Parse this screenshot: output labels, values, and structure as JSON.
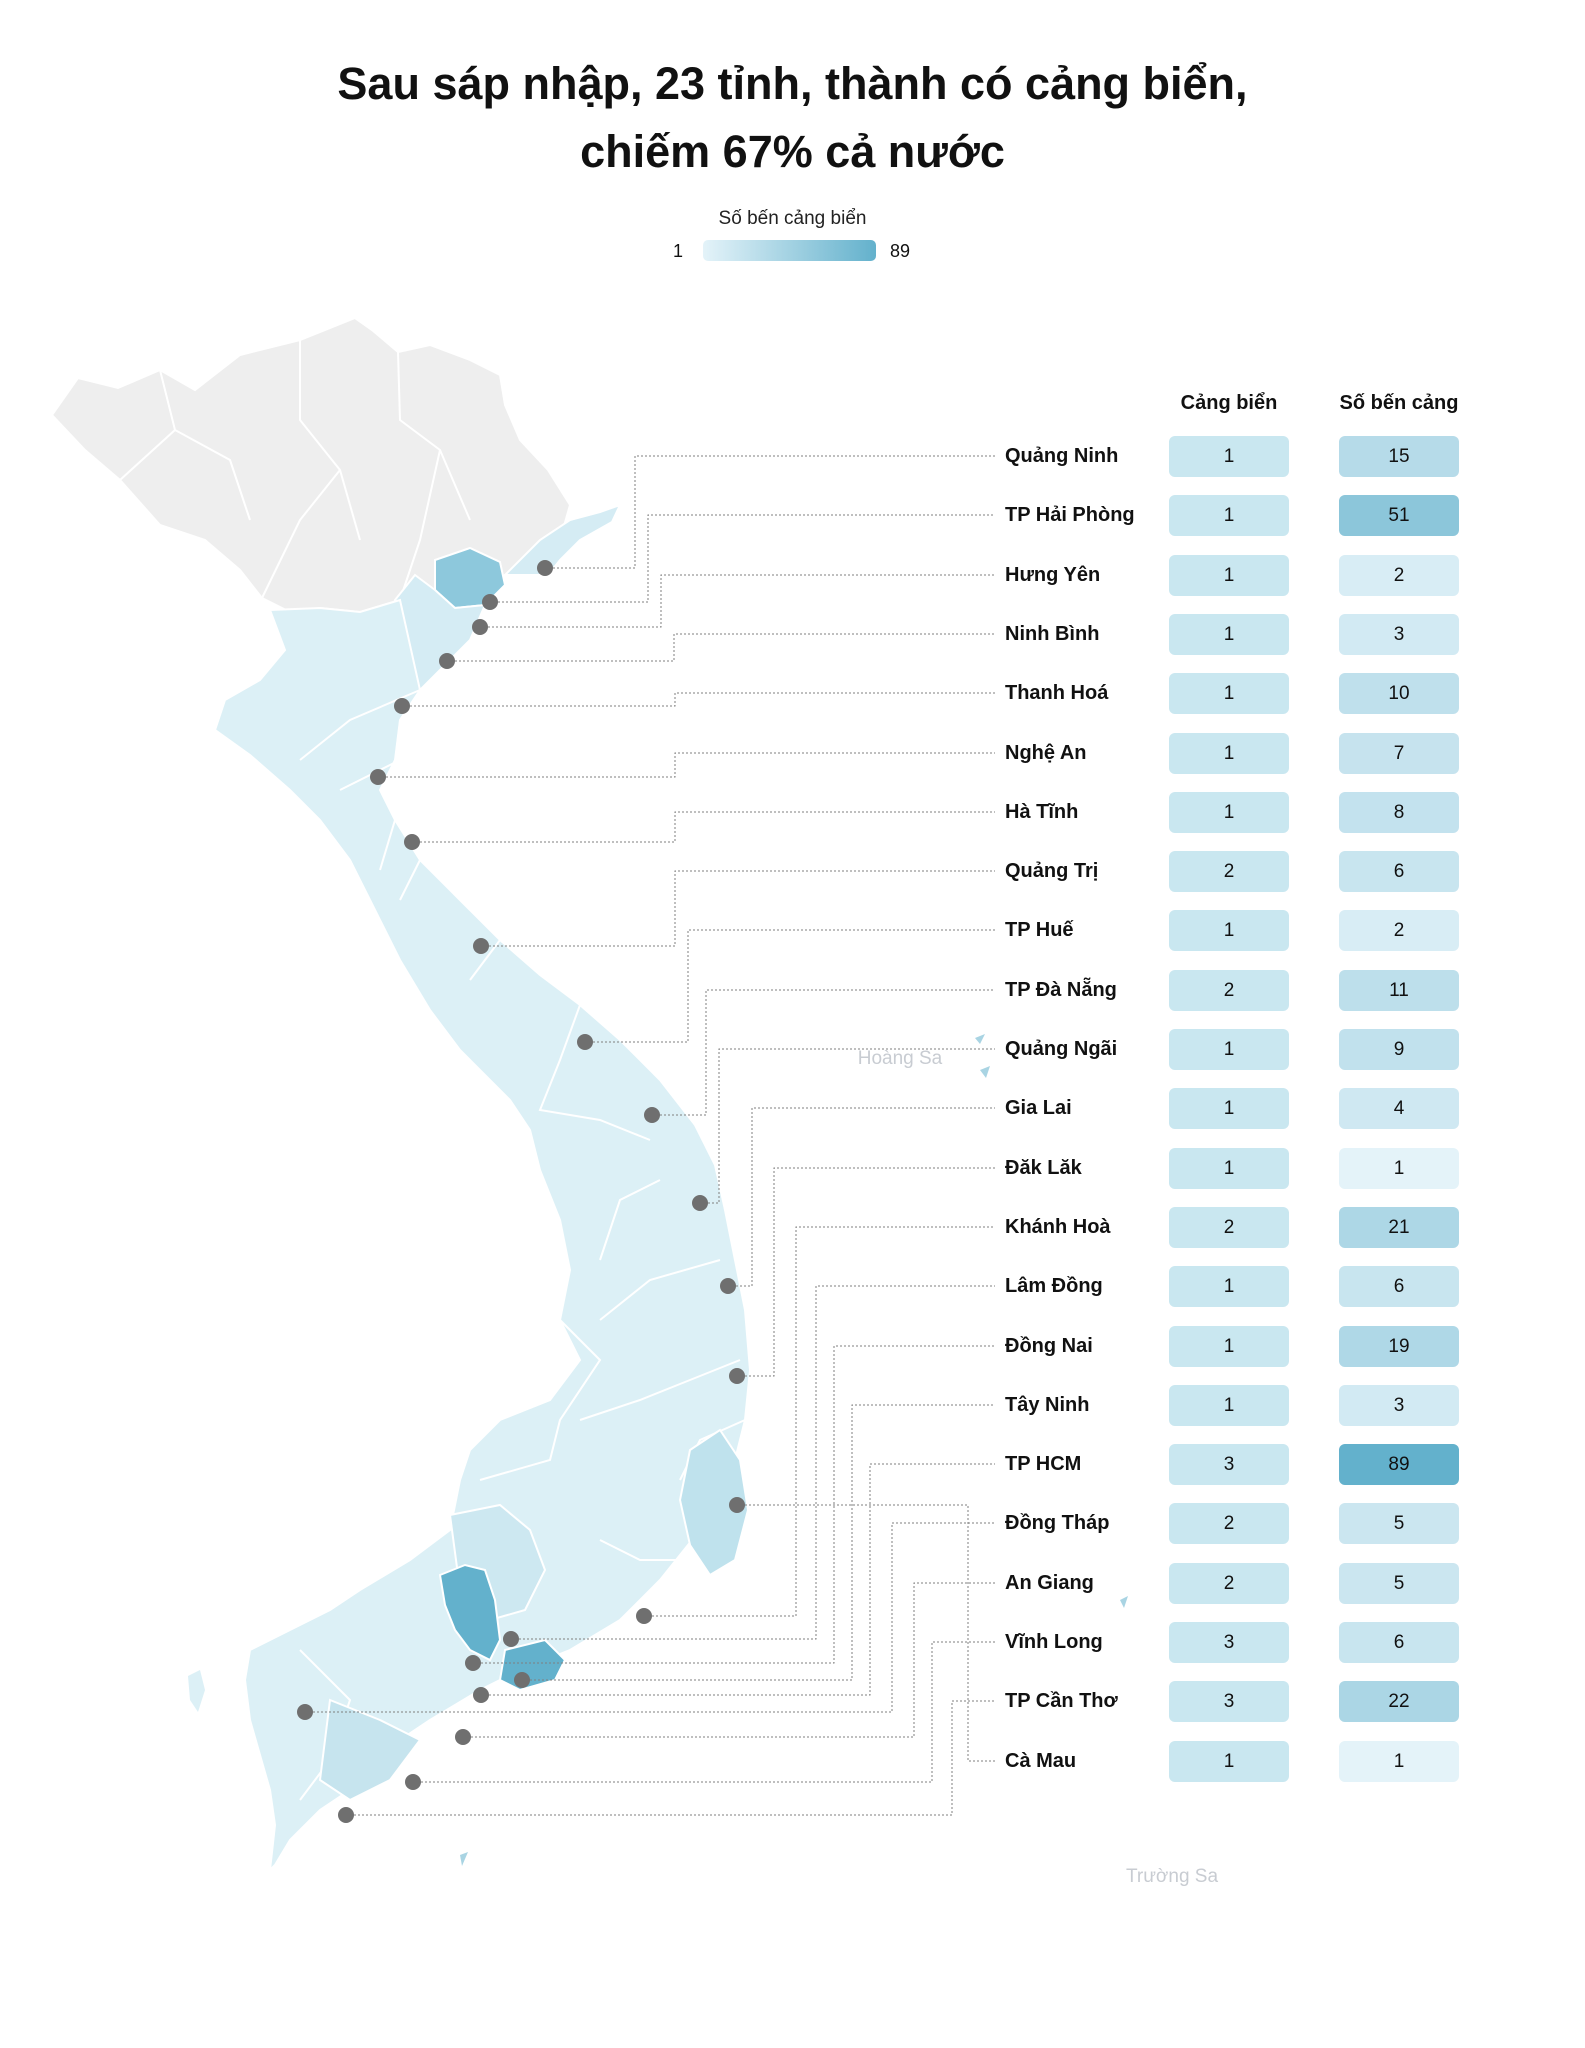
{
  "title": {
    "line1": "Sau sáp nhập, 23 tỉnh, thành có cảng biển,",
    "line2": "chiếm 67% cả nước"
  },
  "legend": {
    "title": "Số bến cảng biển",
    "min": "1",
    "max": "89",
    "color_low": "#e4f3f9",
    "color_high": "#63b1cc"
  },
  "table": {
    "col_ports": "Cảng biển",
    "col_berths": "Số bến cảng"
  },
  "map_labels": {
    "paracel": "Hoàng Sa",
    "spratly": "Trường Sa"
  },
  "colors": {
    "neutral_region": "#eeeeee",
    "port_cell": "#c9e7f0",
    "dot": "#6f6f6f"
  },
  "chart_data": {
    "type": "table",
    "provinces": [
      {
        "name": "Quảng Ninh",
        "ports": 1,
        "berths": 15
      },
      {
        "name": "TP Hải Phòng",
        "ports": 1,
        "berths": 51
      },
      {
        "name": "Hưng Yên",
        "ports": 1,
        "berths": 2
      },
      {
        "name": "Ninh Bình",
        "ports": 1,
        "berths": 3
      },
      {
        "name": "Thanh Hoá",
        "ports": 1,
        "berths": 10
      },
      {
        "name": "Nghệ An",
        "ports": 1,
        "berths": 7
      },
      {
        "name": "Hà Tĩnh",
        "ports": 1,
        "berths": 8
      },
      {
        "name": "Quảng Trị",
        "ports": 2,
        "berths": 6
      },
      {
        "name": "TP Huế",
        "ports": 1,
        "berths": 2
      },
      {
        "name": "TP Đà Nẵng",
        "ports": 2,
        "berths": 11
      },
      {
        "name": "Quảng Ngãi",
        "ports": 1,
        "berths": 9
      },
      {
        "name": "Gia Lai",
        "ports": 1,
        "berths": 4
      },
      {
        "name": "Đăk Lăk",
        "ports": 1,
        "berths": 1
      },
      {
        "name": "Khánh Hoà",
        "ports": 2,
        "berths": 21
      },
      {
        "name": "Lâm Đồng",
        "ports": 1,
        "berths": 6
      },
      {
        "name": "Đồng Nai",
        "ports": 1,
        "berths": 19
      },
      {
        "name": "Tây Ninh",
        "ports": 1,
        "berths": 3
      },
      {
        "name": "TP HCM",
        "ports": 3,
        "berths": 89
      },
      {
        "name": "Đồng Tháp",
        "ports": 2,
        "berths": 5
      },
      {
        "name": "An Giang",
        "ports": 2,
        "berths": 5
      },
      {
        "name": "Vĩnh Long",
        "ports": 3,
        "berths": 6
      },
      {
        "name": "TP Cần Thơ",
        "ports": 3,
        "berths": 22
      },
      {
        "name": "Cà Mau",
        "ports": 1,
        "berths": 1
      }
    ],
    "berth_range": [
      1,
      89
    ]
  }
}
